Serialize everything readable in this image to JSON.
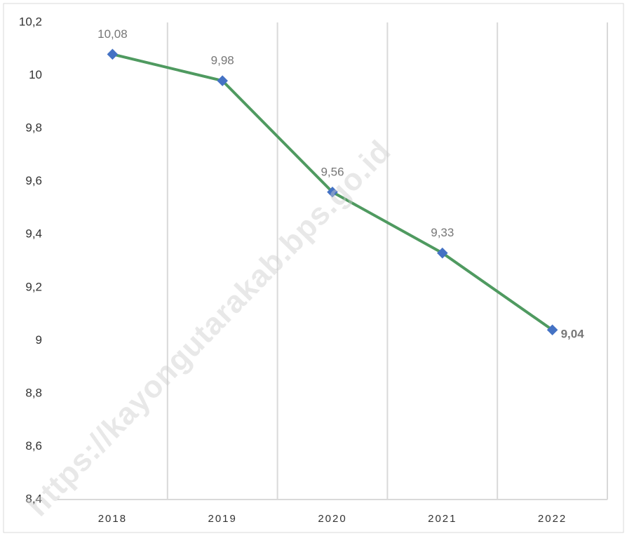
{
  "chart_data": {
    "type": "line",
    "categories": [
      "2018",
      "2019",
      "2020",
      "2021",
      "2022"
    ],
    "series": [
      {
        "name": "",
        "color": "#4f9a60",
        "marker_color": "#4472c4",
        "values": [
          10.08,
          9.98,
          9.56,
          9.33,
          9.04
        ],
        "value_labels": [
          "10,08",
          "9,98",
          "9,56",
          "9,33",
          "9,04"
        ]
      }
    ],
    "ylim": [
      8.4,
      10.2
    ],
    "yticks": [
      {
        "value": 8.4,
        "label": "8,4"
      },
      {
        "value": 8.6,
        "label": "8,6"
      },
      {
        "value": 8.8,
        "label": "8,8"
      },
      9,
      {
        "value": 9.2,
        "label": "9,2"
      },
      {
        "value": 9.4,
        "label": "9,4"
      },
      {
        "value": 9.6,
        "label": "9,6"
      },
      {
        "value": 9.8,
        "label": "9,8"
      },
      10,
      {
        "value": 10.2,
        "label": "10,2"
      }
    ],
    "watermark": "https://kayongutarakab.bps.go.id"
  }
}
